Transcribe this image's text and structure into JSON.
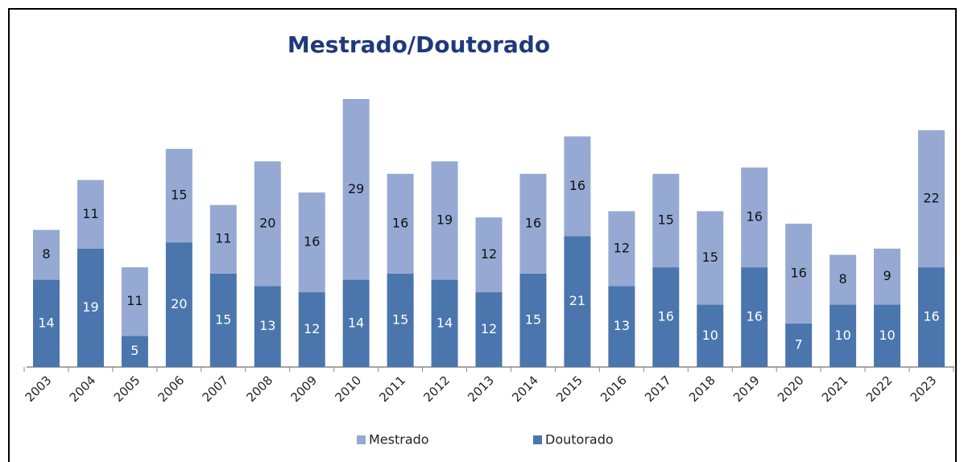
{
  "chart_data": {
    "type": "stacked_bar",
    "title": "Mestrado/Doutorado",
    "categories": [
      "2003",
      "2004",
      "2005",
      "2006",
      "2007",
      "2008",
      "2009",
      "2010",
      "2011",
      "2012",
      "2013",
      "2014",
      "2015",
      "2016",
      "2017",
      "2018",
      "2019",
      "2020",
      "2021",
      "2022",
      "2023"
    ],
    "series": [
      {
        "name": "Mestrado",
        "color": "#95a9d3",
        "values": [
          8,
          11,
          11,
          15,
          11,
          20,
          16,
          29,
          16,
          19,
          12,
          16,
          16,
          12,
          15,
          15,
          16,
          16,
          8,
          9,
          22
        ]
      },
      {
        "name": "Doutorado",
        "color": "#4a76ad",
        "values": [
          14,
          19,
          5,
          20,
          15,
          13,
          12,
          14,
          15,
          14,
          12,
          15,
          21,
          13,
          16,
          10,
          16,
          7,
          10,
          10,
          16
        ]
      }
    ],
    "legend": "bottom"
  }
}
